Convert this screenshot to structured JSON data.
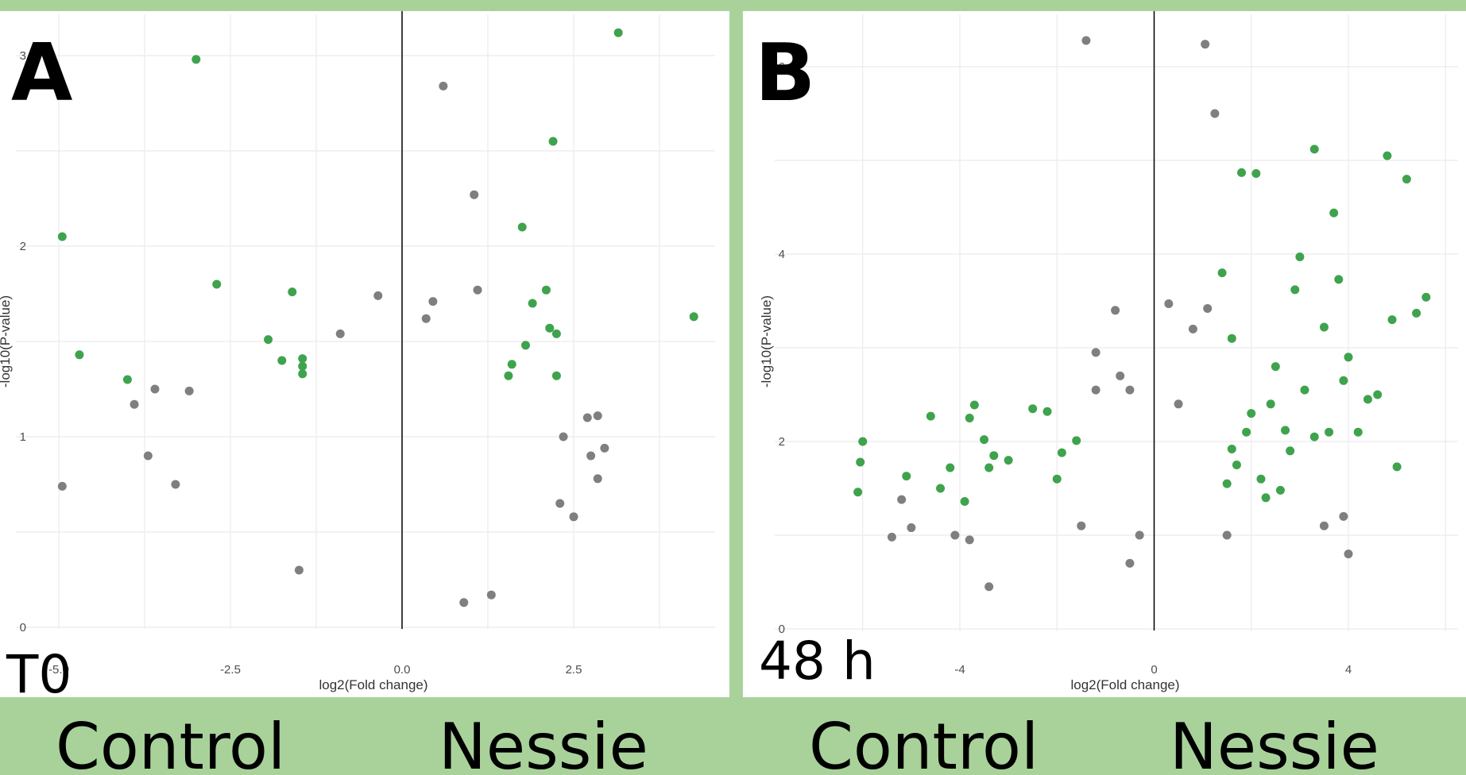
{
  "colors": {
    "frame": "#a9d29b",
    "highlight_point": "#3fa34d",
    "other_point": "#7f7f7f",
    "grid": "#ebebeb",
    "zero_line": "#000000"
  },
  "panels": [
    {
      "letter": "A",
      "time_label": "T0",
      "left_group": "Control",
      "right_group": "Nessie"
    },
    {
      "letter": "B",
      "time_label": "48 h",
      "left_group": "Control",
      "right_group": "Nessie"
    }
  ],
  "chart_data": [
    {
      "type": "scatter",
      "panel": "A",
      "xlabel": "log2(Fold change)",
      "ylabel": "-log10(P-value)",
      "xlim": [
        -5.0,
        5.0
      ],
      "ylim": [
        0,
        3.15
      ],
      "x_ticks": [
        -5.0,
        -2.5,
        0.0,
        2.5
      ],
      "x_tick_labels": [
        "-5.0",
        "-2.5",
        "0.0",
        "2.5"
      ],
      "y_ticks": [
        0,
        1,
        2,
        3
      ],
      "y_tick_labels": [
        "0",
        "1",
        "2",
        "3"
      ],
      "grid": true,
      "vline_x": 0,
      "series": [
        {
          "points": [
            [
              -3.0,
              2.98
            ],
            [
              -4.95,
              2.05
            ],
            [
              -2.7,
              1.8
            ],
            [
              -1.6,
              1.76
            ],
            [
              -4.7,
              1.43
            ],
            [
              -1.75,
              1.4
            ],
            [
              -1.95,
              1.51
            ],
            [
              -1.45,
              1.41
            ],
            [
              -1.45,
              1.37
            ],
            [
              -1.45,
              1.33
            ],
            [
              -4.0,
              1.3
            ],
            [
              3.15,
              3.12
            ],
            [
              2.2,
              2.55
            ],
            [
              1.75,
              2.1
            ],
            [
              2.1,
              1.77
            ],
            [
              1.9,
              1.7
            ],
            [
              2.15,
              1.57
            ],
            [
              2.25,
              1.54
            ],
            [
              1.8,
              1.48
            ],
            [
              1.6,
              1.38
            ],
            [
              1.55,
              1.32
            ],
            [
              2.25,
              1.32
            ],
            [
              4.25,
              1.63
            ]
          ]
        },
        {
          "points": [
            [
              0.6,
              2.84
            ],
            [
              1.05,
              2.27
            ],
            [
              1.1,
              1.77
            ],
            [
              -0.35,
              1.74
            ],
            [
              0.45,
              1.71
            ],
            [
              0.35,
              1.62
            ],
            [
              -0.9,
              1.54
            ],
            [
              -4.95,
              0.74
            ],
            [
              -3.9,
              1.17
            ],
            [
              -3.6,
              1.25
            ],
            [
              -3.1,
              1.24
            ],
            [
              -3.7,
              0.9
            ],
            [
              -3.3,
              0.75
            ],
            [
              2.7,
              1.1
            ],
            [
              2.85,
              1.11
            ],
            [
              2.95,
              0.94
            ],
            [
              2.75,
              0.9
            ],
            [
              2.85,
              0.78
            ],
            [
              2.35,
              1.0
            ],
            [
              2.3,
              0.65
            ],
            [
              2.5,
              0.58
            ],
            [
              1.3,
              0.17
            ],
            [
              0.9,
              0.13
            ],
            [
              -1.5,
              0.3
            ]
          ]
        }
      ]
    },
    {
      "type": "scatter",
      "panel": "B",
      "xlabel": "log2(Fold change)",
      "ylabel": "-log10(P-value)",
      "xlim": [
        -6.0,
        6.0
      ],
      "ylim": [
        0,
        6.3
      ],
      "x_ticks": [
        -4,
        0,
        4
      ],
      "x_tick_labels": [
        "-4",
        "0",
        "4"
      ],
      "y_ticks": [
        0,
        2,
        4,
        6
      ],
      "y_tick_labels": [
        "0",
        "2",
        "4",
        "6"
      ],
      "grid": true,
      "vline_x": 0,
      "series": [
        {
          "points": [
            [
              -6.0,
              2.0
            ],
            [
              -6.05,
              1.78
            ],
            [
              -6.1,
              1.46
            ],
            [
              -5.1,
              1.63
            ],
            [
              -4.6,
              2.27
            ],
            [
              -3.7,
              2.39
            ],
            [
              -3.8,
              2.25
            ],
            [
              -3.5,
              2.02
            ],
            [
              -3.3,
              1.85
            ],
            [
              -3.4,
              1.72
            ],
            [
              -3.0,
              1.8
            ],
            [
              -2.5,
              2.35
            ],
            [
              -2.2,
              2.32
            ],
            [
              -2.0,
              1.6
            ],
            [
              -1.6,
              2.01
            ],
            [
              -1.9,
              1.88
            ],
            [
              -4.2,
              1.72
            ],
            [
              -4.4,
              1.5
            ],
            [
              -3.9,
              1.36
            ],
            [
              1.8,
              4.87
            ],
            [
              2.1,
              4.86
            ],
            [
              3.3,
              5.12
            ],
            [
              4.8,
              5.05
            ],
            [
              5.2,
              4.8
            ],
            [
              3.7,
              4.44
            ],
            [
              1.4,
              3.8
            ],
            [
              3.0,
              3.97
            ],
            [
              3.8,
              3.73
            ],
            [
              2.9,
              3.62
            ],
            [
              5.6,
              3.54
            ],
            [
              5.4,
              3.37
            ],
            [
              4.9,
              3.3
            ],
            [
              1.6,
              3.1
            ],
            [
              2.5,
              2.8
            ],
            [
              3.5,
              3.22
            ],
            [
              4.0,
              2.9
            ],
            [
              5.0,
              1.73
            ],
            [
              1.7,
              1.75
            ],
            [
              2.2,
              1.6
            ],
            [
              2.6,
              1.48
            ],
            [
              3.3,
              2.05
            ],
            [
              4.4,
              2.45
            ],
            [
              1.9,
              2.1
            ],
            [
              2.8,
              1.9
            ],
            [
              3.6,
              2.1
            ],
            [
              2.4,
              2.4
            ],
            [
              3.9,
              2.65
            ],
            [
              1.5,
              1.55
            ],
            [
              2.0,
              2.3
            ],
            [
              2.3,
              1.4
            ],
            [
              3.1,
              2.55
            ],
            [
              4.6,
              2.5
            ],
            [
              4.2,
              2.1
            ],
            [
              1.6,
              1.92
            ],
            [
              2.7,
              2.12
            ]
          ]
        },
        {
          "points": [
            [
              -1.4,
              6.28
            ],
            [
              1.05,
              6.24
            ],
            [
              1.25,
              5.5
            ],
            [
              -0.8,
              3.4
            ],
            [
              -1.2,
              2.95
            ],
            [
              0.3,
              3.47
            ],
            [
              1.1,
              3.42
            ],
            [
              0.8,
              3.2
            ],
            [
              -0.5,
              2.55
            ],
            [
              -0.7,
              2.7
            ],
            [
              -1.2,
              2.55
            ],
            [
              -5.2,
              1.38
            ],
            [
              -5.0,
              1.08
            ],
            [
              -5.4,
              0.98
            ],
            [
              -4.1,
              1.0
            ],
            [
              -3.8,
              0.95
            ],
            [
              4.0,
              0.8
            ],
            [
              3.9,
              1.2
            ],
            [
              3.5,
              1.1
            ],
            [
              -3.4,
              0.45
            ],
            [
              -0.3,
              1.0
            ],
            [
              -0.5,
              0.7
            ],
            [
              0.5,
              2.4
            ],
            [
              -1.5,
              1.1
            ],
            [
              1.5,
              1.0
            ]
          ]
        }
      ]
    }
  ]
}
